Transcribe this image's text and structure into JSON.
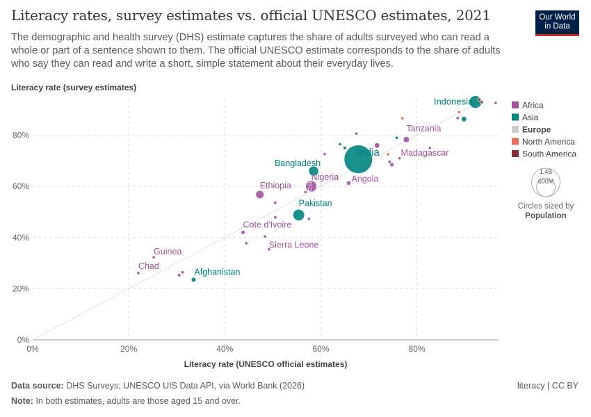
{
  "header": {
    "title": "Literacy rates, survey estimates vs. official UNESCO estimates, 2021",
    "subtitle": "The demographic and health survey (DHS) estimate captures the share of adults surveyed who can read a whole or part of a sentence shown to them. The official UNESCO estimate corresponds to the share of adults who say they can read and write a short, simple statement about their everyday lives.",
    "logo_line1": "Our World",
    "logo_line2": "in Data"
  },
  "footer": {
    "source_label": "Data source:",
    "source_text": "DHS Surveys; UNESCO UIS Data API, via World Bank (2026)",
    "note_label": "Note:",
    "note_text": "In both estimates, adults are those aged 15 and over.",
    "license": "literacy | CC BY"
  },
  "colors": {
    "Africa": "#a2559c",
    "Asia": "#00847e",
    "Europe": "#cccccc",
    "North America": "#e56e5a",
    "South America": "#883039",
    "grid": "#dddddd",
    "diagonal": "#b5b5b5"
  },
  "chart_data": {
    "type": "scatter",
    "xlabel": "Literacy rate (UNESCO official estimates)",
    "ylabel": "Literacy rate (survey estimates)",
    "xlim": [
      0,
      97
    ],
    "ylim": [
      0,
      94
    ],
    "x_ticks": [
      0,
      20,
      40,
      60,
      80
    ],
    "y_ticks": [
      0,
      20,
      40,
      60,
      80
    ],
    "tick_suffix": "%",
    "grid": true,
    "reference_line": "y = x",
    "legend": {
      "placement": "right",
      "entries": [
        "Africa",
        "Asia",
        "Europe",
        "North America",
        "South America"
      ],
      "size_title": "Circles sized by",
      "size_variable": "Population",
      "size_labels": [
        "1.4B",
        "600M"
      ]
    },
    "points": [
      {
        "label": "India",
        "region": "Asia",
        "x": 67.8,
        "y": 70.6,
        "pop": 1400
      },
      {
        "label": "Indonesia",
        "region": "Asia",
        "x": 92.2,
        "y": 93.0,
        "pop": 275
      },
      {
        "label": "Bangladesh",
        "region": "Asia",
        "x": 58.5,
        "y": 66.0,
        "pop": 170
      },
      {
        "label": "Pakistan",
        "region": "Asia",
        "x": 55.4,
        "y": 48.8,
        "pop": 230
      },
      {
        "label": "Afghanistan",
        "region": "Asia",
        "x": 33.5,
        "y": 23.5,
        "pop": 40
      },
      {
        "label": "",
        "region": "Asia",
        "x": 89.8,
        "y": 86.3,
        "pop": 50
      },
      {
        "label": "",
        "region": "Asia",
        "x": 65.0,
        "y": 75.0,
        "pop": 20
      },
      {
        "label": "",
        "region": "Asia",
        "x": 64.0,
        "y": 76.5,
        "pop": 10
      },
      {
        "label": "",
        "region": "Asia",
        "x": 75.8,
        "y": 79.0,
        "pop": 10
      },
      {
        "label": "Nigeria",
        "region": "Africa",
        "x": 58.0,
        "y": 60.0,
        "pop": 215
      },
      {
        "label": "Ethiopia",
        "region": "Africa",
        "x": 47.3,
        "y": 56.8,
        "pop": 120
      },
      {
        "label": "Tanzania",
        "region": "Africa",
        "x": 77.8,
        "y": 78.3,
        "pop": 65
      },
      {
        "label": "Madagascar",
        "region": "Africa",
        "x": 74.8,
        "y": 68.5,
        "pop": 30
      },
      {
        "label": "Angola",
        "region": "Africa",
        "x": 65.8,
        "y": 61.3,
        "pop": 35
      },
      {
        "label": "Cote d'Ivoire",
        "region": "Africa",
        "x": 43.8,
        "y": 42.0,
        "pop": 28
      },
      {
        "label": "Sierra Leone",
        "region": "Africa",
        "x": 49.2,
        "y": 35.4,
        "pop": 8
      },
      {
        "label": "Guinea",
        "region": "Africa",
        "x": 25.2,
        "y": 32.3,
        "pop": 13
      },
      {
        "label": "Chad",
        "region": "Africa",
        "x": 22.0,
        "y": 26.1,
        "pop": 17
      },
      {
        "label": "",
        "region": "Africa",
        "x": 71.7,
        "y": 76.0,
        "pop": 50
      },
      {
        "label": "",
        "region": "Africa",
        "x": 30.5,
        "y": 25.3,
        "pop": 22
      },
      {
        "label": "",
        "region": "Africa",
        "x": 31.2,
        "y": 26.4,
        "pop": 12
      },
      {
        "label": "",
        "region": "Africa",
        "x": 44.5,
        "y": 37.8,
        "pop": 8
      },
      {
        "label": "",
        "region": "Africa",
        "x": 48.4,
        "y": 40.4,
        "pop": 8
      },
      {
        "label": "",
        "region": "Africa",
        "x": 50.5,
        "y": 47.9,
        "pop": 8
      },
      {
        "label": "",
        "region": "Africa",
        "x": 50.5,
        "y": 53.6,
        "pop": 10
      },
      {
        "label": "",
        "region": "Africa",
        "x": 56.8,
        "y": 57.8,
        "pop": 8
      },
      {
        "label": "",
        "region": "Africa",
        "x": 57.7,
        "y": 58.8,
        "pop": 8
      },
      {
        "label": "",
        "region": "Africa",
        "x": 57.8,
        "y": 61.0,
        "pop": 8
      },
      {
        "label": "",
        "region": "Africa",
        "x": 57.5,
        "y": 47.3,
        "pop": 8
      },
      {
        "label": "",
        "region": "Africa",
        "x": 60.8,
        "y": 72.6,
        "pop": 8
      },
      {
        "label": "",
        "region": "Africa",
        "x": 67.4,
        "y": 80.6,
        "pop": 8
      },
      {
        "label": "",
        "region": "Africa",
        "x": 74.3,
        "y": 69.6,
        "pop": 8
      },
      {
        "label": "",
        "region": "Africa",
        "x": 76.4,
        "y": 71.0,
        "pop": 10
      },
      {
        "label": "",
        "region": "Africa",
        "x": 82.7,
        "y": 75.0,
        "pop": 8
      },
      {
        "label": "",
        "region": "Africa",
        "x": 88.5,
        "y": 86.7,
        "pop": 8
      },
      {
        "label": "",
        "region": "Africa",
        "x": 96.4,
        "y": 92.6,
        "pop": 5
      },
      {
        "label": "",
        "region": "North America",
        "x": 77.0,
        "y": 86.6,
        "pop": 8
      },
      {
        "label": "",
        "region": "North America",
        "x": 88.8,
        "y": 89.0,
        "pop": 8
      },
      {
        "label": "",
        "region": "North America",
        "x": 74.0,
        "y": 72.5,
        "pop": 8
      },
      {
        "label": "",
        "region": "South America",
        "x": 93.5,
        "y": 92.9,
        "pop": 12
      },
      {
        "label": "",
        "region": "South America",
        "x": 93.0,
        "y": 93.9,
        "pop": 8
      }
    ]
  }
}
